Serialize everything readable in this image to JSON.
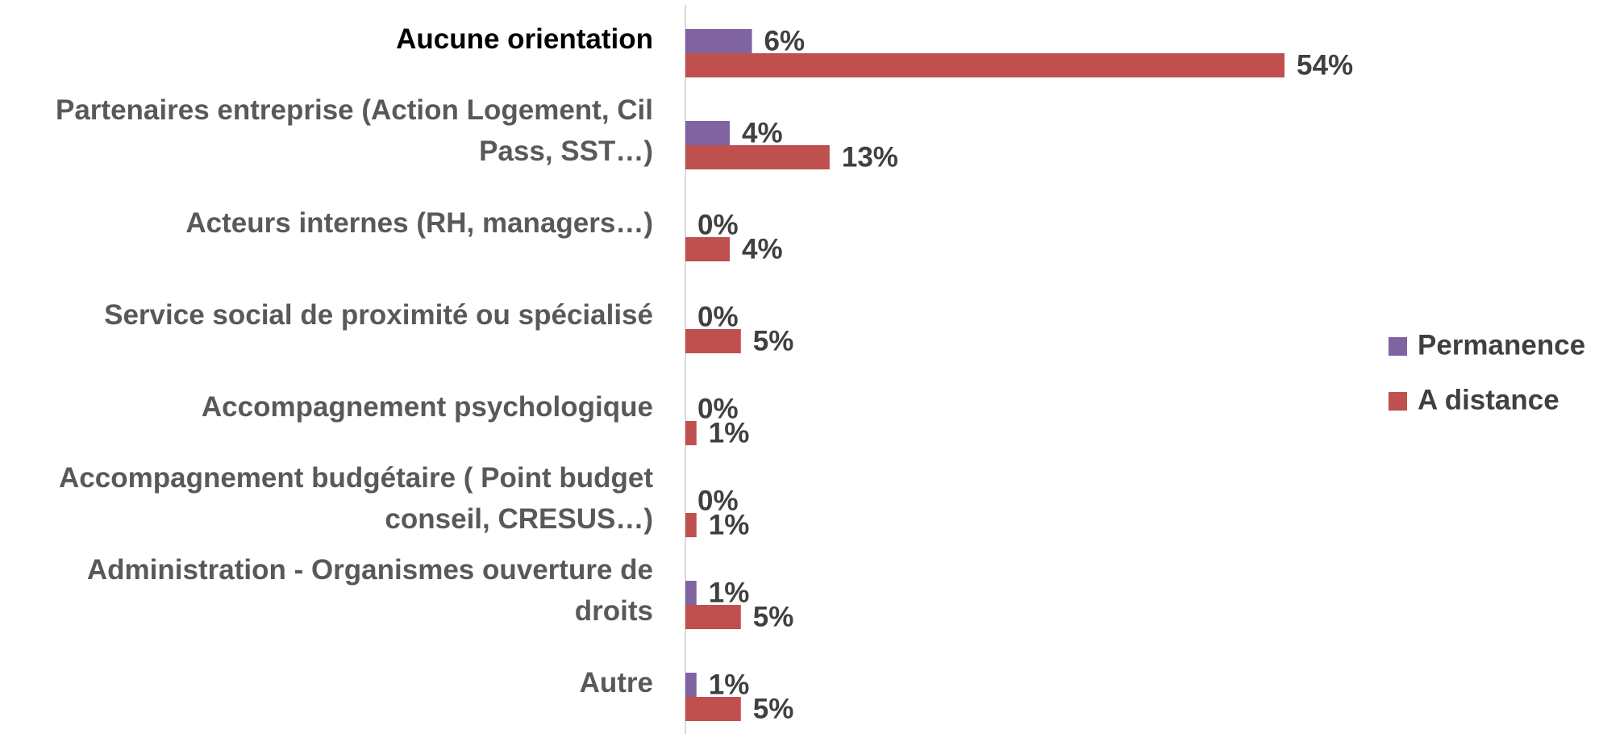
{
  "chart_data": {
    "type": "bar",
    "orientation": "horizontal",
    "categories": [
      "Aucune orientation",
      "Partenaires entreprise (Action Logement, Cil Pass, SST…)",
      "Acteurs internes (RH, managers…)",
      "Service social de proximité ou spécialisé",
      "Accompagnement psychologique",
      "Accompagnement budgétaire ( Point budget conseil, CRESUS…)",
      "Administration - Organismes ouverture de droits",
      "Autre"
    ],
    "series": [
      {
        "name": "Permanence",
        "color": "#8064a2",
        "values": [
          6,
          4,
          0,
          0,
          0,
          0,
          1,
          1
        ],
        "value_labels": [
          "6%",
          "4%",
          "0%",
          "0%",
          "0%",
          "0%",
          "1%",
          "1%"
        ]
      },
      {
        "name": "A distance",
        "color": "#c0504d",
        "values": [
          54,
          13,
          4,
          5,
          1,
          1,
          5,
          5
        ],
        "value_labels": [
          "54%",
          "13%",
          "4%",
          "5%",
          "1%",
          "1%",
          "5%",
          "5%"
        ]
      }
    ],
    "legend": "right"
  }
}
